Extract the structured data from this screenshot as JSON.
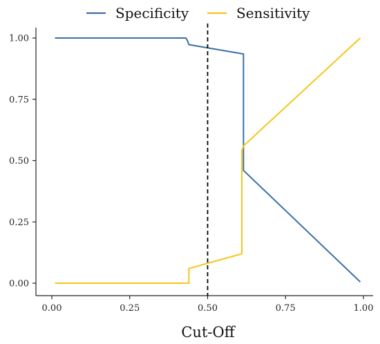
{
  "chart_data": {
    "type": "line",
    "title": "",
    "xlabel": "Cut-Off",
    "ylabel": "",
    "xlim": [
      0,
      1
    ],
    "ylim": [
      0,
      1
    ],
    "x_ticks": [
      0.0,
      0.25,
      0.5,
      0.75,
      1.0
    ],
    "x_tick_labels": [
      "0.00",
      "0.25",
      "0.50",
      "0.75",
      "1.00"
    ],
    "y_ticks": [
      0.0,
      0.25,
      0.5,
      0.75,
      1.0
    ],
    "y_tick_labels": [
      "0.00",
      "0.25",
      "0.50",
      "0.75",
      "1.00"
    ],
    "grid": false,
    "legend_position": "top",
    "reference_line": {
      "axis": "x",
      "value": 0.5,
      "style": "dashed",
      "color": "#000000"
    },
    "series": [
      {
        "name": "Specificity",
        "color": "#3a6ea5",
        "x": [
          0.01,
          0.43,
          0.435,
          0.44,
          0.615,
          0.615,
          0.99
        ],
        "y": [
          1.0,
          1.0,
          0.99,
          0.973,
          0.935,
          0.46,
          0.005
        ]
      },
      {
        "name": "Sensitivity",
        "color": "#f5c518",
        "x": [
          0.01,
          0.44,
          0.44,
          0.61,
          0.61,
          0.615,
          0.99
        ],
        "y": [
          0.0,
          0.0,
          0.06,
          0.12,
          0.54,
          0.56,
          1.0
        ]
      }
    ]
  }
}
